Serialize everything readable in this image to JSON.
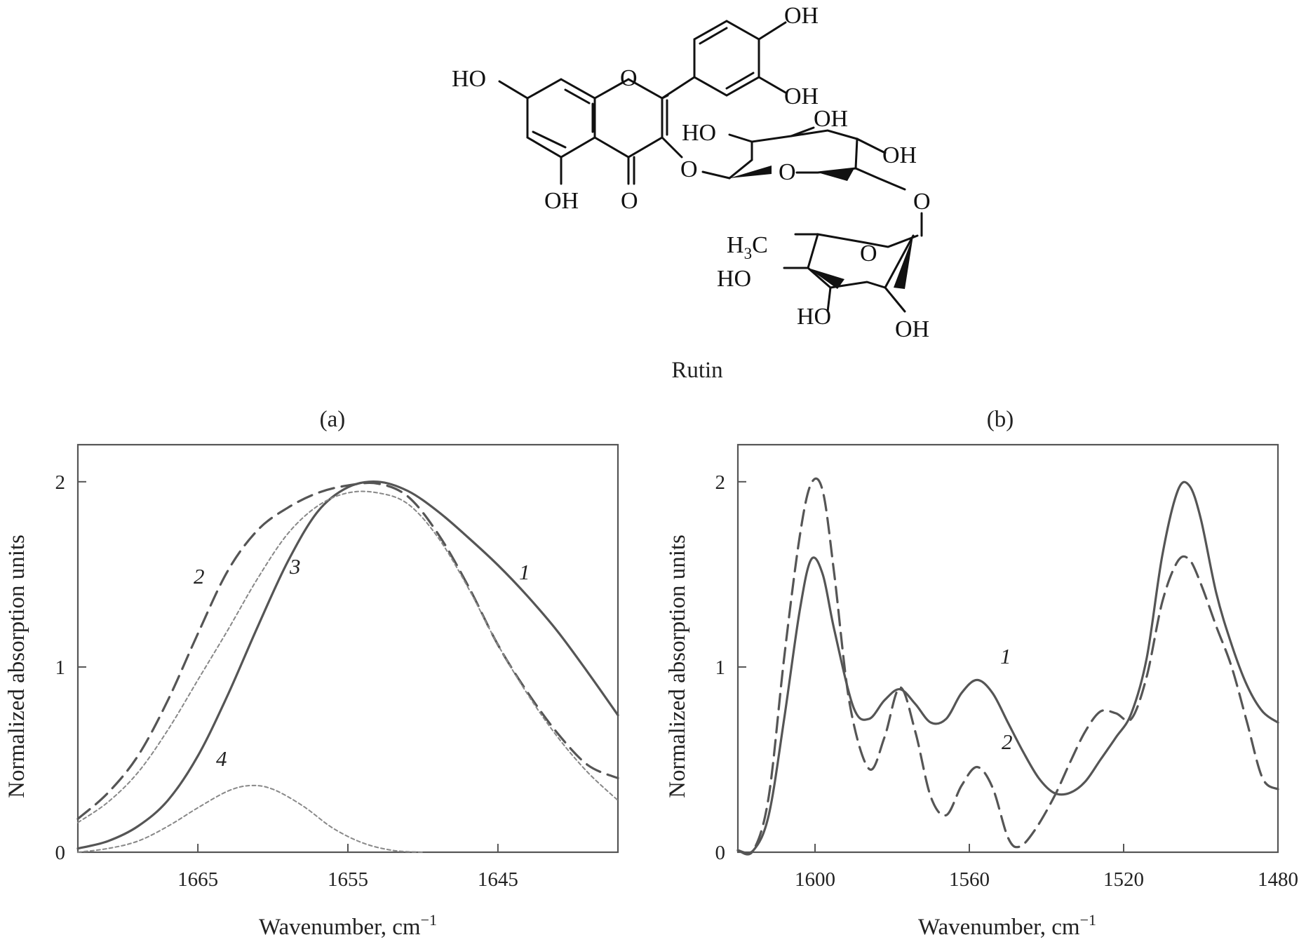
{
  "structure": {
    "name": "Rutin",
    "atoms": {
      "HO_left": "HO",
      "OH_top": "OH",
      "OH_second": "OH",
      "O_ring": "O",
      "OH_bottom": "OH",
      "O_carbonyl": "O",
      "O_glyco": "O",
      "HO_sugar": "HO",
      "OH_sugar_top": "OH",
      "O_sugar_ring": "O",
      "OH_sugar_right": "OH",
      "O_link": "O",
      "H3C": "H",
      "H3C_sub": "3",
      "H3C_c": "C",
      "O_rham": "O",
      "HO_rham_left": "HO",
      "HO_rham_bottom": "HO",
      "OH_rham_bottom": "OH"
    }
  },
  "chart_data": [
    {
      "panel": "(a)",
      "type": "line",
      "xlabel": "Wavenumber, cm",
      "xlabel_sup": "−1",
      "ylabel": "Normalized absorption units",
      "xlim": [
        1673,
        1637
      ],
      "ylim": [
        0,
        2.2
      ],
      "x_reversed": true,
      "xticks": [
        1665,
        1655,
        1645
      ],
      "yticks": [
        0,
        1,
        2
      ],
      "grid": false,
      "series": [
        {
          "name": "1",
          "style": "solid",
          "color": "#555555",
          "x": [
            1673,
            1671,
            1669,
            1667,
            1665,
            1663,
            1661,
            1659,
            1657,
            1655,
            1653,
            1651,
            1649,
            1647,
            1645,
            1643,
            1641,
            1639,
            1637
          ],
          "y": [
            0.02,
            0.06,
            0.14,
            0.28,
            0.52,
            0.85,
            1.22,
            1.57,
            1.84,
            1.97,
            2.0,
            1.95,
            1.84,
            1.7,
            1.55,
            1.38,
            1.19,
            0.97,
            0.74
          ]
        },
        {
          "name": "2",
          "style": "dashed",
          "color": "#555555",
          "x": [
            1673,
            1671,
            1669,
            1667,
            1665,
            1663,
            1661,
            1659,
            1657,
            1655,
            1653,
            1651,
            1649,
            1647,
            1645,
            1643,
            1641,
            1639,
            1637
          ],
          "y": [
            0.18,
            0.32,
            0.52,
            0.82,
            1.18,
            1.52,
            1.74,
            1.86,
            1.94,
            1.98,
            1.99,
            1.92,
            1.72,
            1.44,
            1.12,
            0.86,
            0.64,
            0.47,
            0.4
          ]
        },
        {
          "name": "3",
          "style": "dotted",
          "color": "#888888",
          "x": [
            1673,
            1671,
            1669,
            1667,
            1665,
            1663,
            1661,
            1659,
            1657,
            1655,
            1653,
            1651,
            1649,
            1647,
            1645,
            1643,
            1641,
            1639,
            1637
          ],
          "y": [
            0.16,
            0.27,
            0.43,
            0.66,
            0.93,
            1.2,
            1.48,
            1.72,
            1.87,
            1.94,
            1.94,
            1.88,
            1.7,
            1.43,
            1.12,
            0.85,
            0.62,
            0.43,
            0.28
          ]
        },
        {
          "name": "4",
          "style": "dotted",
          "color": "#888888",
          "x": [
            1673,
            1671,
            1669,
            1667,
            1665,
            1663,
            1661.5,
            1660,
            1658,
            1656,
            1654,
            1652,
            1650
          ],
          "y": [
            0.0,
            0.02,
            0.06,
            0.14,
            0.24,
            0.33,
            0.36,
            0.34,
            0.25,
            0.13,
            0.05,
            0.01,
            0.0
          ]
        }
      ],
      "curve_labels": [
        "2",
        "3",
        "1",
        "4"
      ]
    },
    {
      "panel": "(b)",
      "type": "line",
      "xlabel": "Wavenumber, cm",
      "xlabel_sup": "−1",
      "ylabel": "Normalized absorption units",
      "xlim": [
        1620,
        1480
      ],
      "ylim": [
        0,
        2.2
      ],
      "x_reversed": true,
      "xticks": [
        1600,
        1560,
        1520,
        1480
      ],
      "yticks": [
        0,
        1,
        2
      ],
      "grid": false,
      "series": [
        {
          "name": "1",
          "style": "solid",
          "color": "#555555",
          "x": [
            1620,
            1616,
            1612,
            1608,
            1604,
            1601,
            1598,
            1595,
            1590,
            1586,
            1582,
            1578,
            1574,
            1570,
            1566,
            1562,
            1558,
            1554,
            1550,
            1546,
            1542,
            1538,
            1534,
            1530,
            1526,
            1522,
            1518,
            1514,
            1510,
            1506,
            1503,
            1500,
            1496,
            1492,
            1488,
            1484,
            1480
          ],
          "y": [
            0.01,
            0.01,
            0.2,
            0.72,
            1.3,
            1.58,
            1.5,
            1.2,
            0.78,
            0.72,
            0.82,
            0.88,
            0.8,
            0.7,
            0.72,
            0.86,
            0.93,
            0.86,
            0.7,
            0.54,
            0.4,
            0.32,
            0.32,
            0.38,
            0.5,
            0.62,
            0.75,
            1.05,
            1.6,
            1.95,
            1.98,
            1.8,
            1.4,
            1.12,
            0.9,
            0.76,
            0.7
          ]
        },
        {
          "name": "2",
          "style": "dashed",
          "color": "#555555",
          "x": [
            1620,
            1616,
            1612,
            1608,
            1604,
            1601,
            1598,
            1595,
            1591,
            1586,
            1582,
            1578,
            1574,
            1570,
            1566,
            1562,
            1558,
            1554,
            1550,
            1547,
            1543,
            1538,
            1534,
            1530,
            1526,
            1522,
            1518,
            1514,
            1510,
            1506,
            1503,
            1500,
            1496,
            1492,
            1488,
            1484,
            1480
          ],
          "y": [
            0.01,
            0.01,
            0.3,
            1.05,
            1.7,
            1.99,
            1.95,
            1.5,
            0.8,
            0.45,
            0.62,
            0.89,
            0.65,
            0.3,
            0.2,
            0.36,
            0.46,
            0.35,
            0.08,
            0.03,
            0.12,
            0.3,
            0.48,
            0.65,
            0.76,
            0.75,
            0.72,
            0.95,
            1.35,
            1.57,
            1.58,
            1.45,
            1.22,
            1.0,
            0.7,
            0.4,
            0.34
          ]
        }
      ],
      "curve_labels": [
        "1",
        "2"
      ]
    }
  ]
}
